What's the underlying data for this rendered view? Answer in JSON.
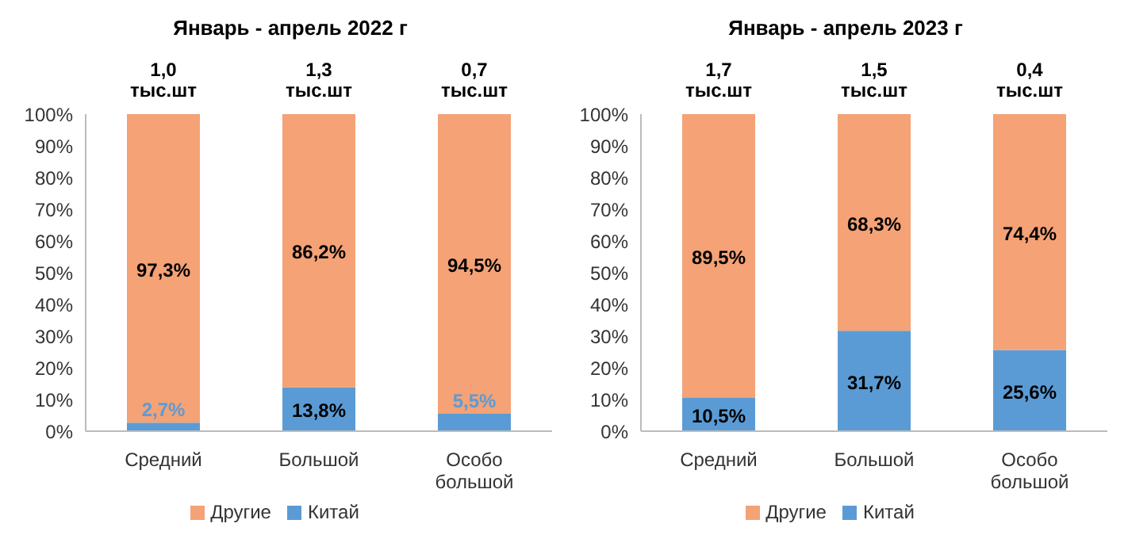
{
  "chart_data": [
    {
      "type": "bar",
      "title": "Январь - апрель 2022 г",
      "categories": [
        "Средний",
        "Большой",
        "Особо большой"
      ],
      "stacked": true,
      "series": [
        {
          "name": "Китай",
          "color": "#5b9bd5",
          "values": [
            2.7,
            13.8,
            5.5
          ],
          "value_labels": [
            "2,7%",
            "13,8%",
            "5,5%"
          ]
        },
        {
          "name": "Другие",
          "color": "#f4a276",
          "values": [
            97.3,
            86.2,
            94.5
          ],
          "value_labels": [
            "97,3%",
            "86,2%",
            "94,5%"
          ]
        }
      ],
      "annotations": [
        "1,0 тыс.шт",
        "1,3 тыс.шт",
        "0,7 тыс.шт"
      ],
      "ylim": [
        0,
        100
      ],
      "yticks": [
        {
          "value": 0,
          "label": "0%"
        },
        {
          "value": 10,
          "label": "10%"
        },
        {
          "value": 20,
          "label": "20%"
        },
        {
          "value": 30,
          "label": "30%"
        },
        {
          "value": 40,
          "label": "40%"
        },
        {
          "value": 50,
          "label": "50%"
        },
        {
          "value": 60,
          "label": "60%"
        },
        {
          "value": 70,
          "label": "70%"
        },
        {
          "value": 80,
          "label": "80%"
        },
        {
          "value": 90,
          "label": "90%"
        },
        {
          "value": 100,
          "label": "100%"
        }
      ],
      "legend": "bottom"
    },
    {
      "type": "bar",
      "title": "Январь - апрель 2023 г",
      "categories": [
        "Средний",
        "Большой",
        "Особо большой"
      ],
      "stacked": true,
      "series": [
        {
          "name": "Китай",
          "color": "#5b9bd5",
          "values": [
            10.5,
            31.7,
            25.6
          ],
          "value_labels": [
            "10,5%",
            "31,7%",
            "25,6%"
          ]
        },
        {
          "name": "Другие",
          "color": "#f4a276",
          "values": [
            89.5,
            68.3,
            74.4
          ],
          "value_labels": [
            "89,5%",
            "68,3%",
            "74,4%"
          ]
        }
      ],
      "annotations": [
        "1,7 тыс.шт",
        "1,5 тыс.шт",
        "0,4 тыс.шт"
      ],
      "ylim": [
        0,
        100
      ],
      "yticks": [
        {
          "value": 0,
          "label": "0%"
        },
        {
          "value": 10,
          "label": "10%"
        },
        {
          "value": 20,
          "label": "20%"
        },
        {
          "value": 30,
          "label": "30%"
        },
        {
          "value": 40,
          "label": "40%"
        },
        {
          "value": 50,
          "label": "50%"
        },
        {
          "value": 60,
          "label": "60%"
        },
        {
          "value": 70,
          "label": "70%"
        },
        {
          "value": 80,
          "label": "80%"
        },
        {
          "value": 90,
          "label": "90%"
        },
        {
          "value": 100,
          "label": "100%"
        }
      ],
      "legend": "bottom"
    }
  ]
}
